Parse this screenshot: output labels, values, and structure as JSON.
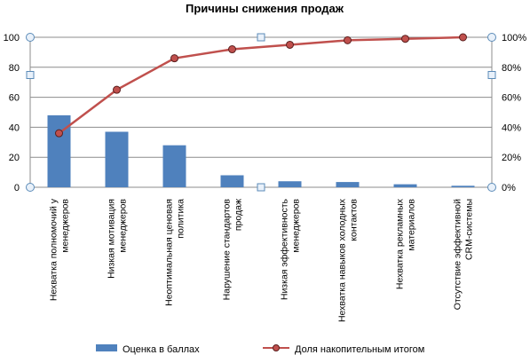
{
  "chart_data": {
    "type": "bar",
    "title": "Причины снижения продаж",
    "categories": [
      [
        "Нехватка полномочий у",
        "менеджеров"
      ],
      [
        "Низкая мотивация",
        "менеджеров"
      ],
      [
        "Неоптимальная ценовая",
        "политика"
      ],
      [
        "Нарушение стандартов",
        "продаж"
      ],
      [
        "Низкая эффективность",
        "менеджеров"
      ],
      [
        "Нехватка навыков холодных",
        "контактов"
      ],
      [
        "Нехватка рекламных",
        "материалов"
      ],
      [
        "Отсутствие эффективной",
        "CRM-системы"
      ]
    ],
    "series": [
      {
        "name": "Оценка в баллах",
        "type": "bar",
        "axis": "left",
        "color": "#4f81bd",
        "values": [
          48,
          37,
          28,
          8,
          4,
          3.5,
          2,
          1
        ]
      },
      {
        "name": "Доля накопительным итогом",
        "type": "line",
        "axis": "right",
        "color": "#c0504d",
        "values": [
          0.36,
          0.65,
          0.86,
          0.92,
          0.95,
          0.98,
          0.99,
          1.0
        ]
      }
    ],
    "y_left": {
      "min": 0,
      "max": 100,
      "ticks": [
        "0",
        "20",
        "40",
        "60",
        "80",
        "100"
      ]
    },
    "y_right": {
      "min": 0,
      "max": 1,
      "ticks": [
        "0%",
        "20%",
        "40%",
        "60%",
        "80%",
        "100%"
      ]
    },
    "grid": true,
    "legend": "bottom"
  }
}
